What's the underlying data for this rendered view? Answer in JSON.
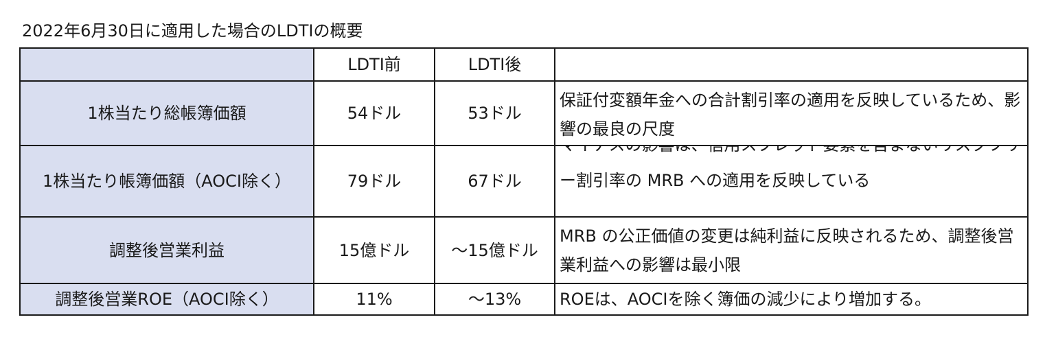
{
  "caption": "2022年6月30日に適用した場合のLDTIの概要",
  "header": {
    "label": "",
    "before": "LDTI前",
    "after": "LDTI後",
    "note": ""
  },
  "rows": [
    {
      "label": "1株当たり総帳簿価額",
      "before": "54ドル",
      "after": "53ドル",
      "note": "保証付変額年金への合計割引率の適用を反映しているため、影響の最良の尺度"
    },
    {
      "label": "1株当たり帳簿価額（AOCI除く）",
      "before": "79ドル",
      "after": "67ドル",
      "note": "マイナスの影響は、信用スプレッド要素を含まないリスクフリー割引率の MRB への適用を反映している"
    },
    {
      "label": "調整後営業利益",
      "before": "15億ドル",
      "after": "～15億ドル",
      "note": "MRB の公正価値の変更は純利益に反映されるため、調整後営業利益への影響は最小限"
    },
    {
      "label": "調整後営業ROE（AOCI除く）",
      "before": "11%",
      "after": "～13%",
      "note": "ROEは、AOCIを除く簿価の減少により増加する。"
    }
  ]
}
